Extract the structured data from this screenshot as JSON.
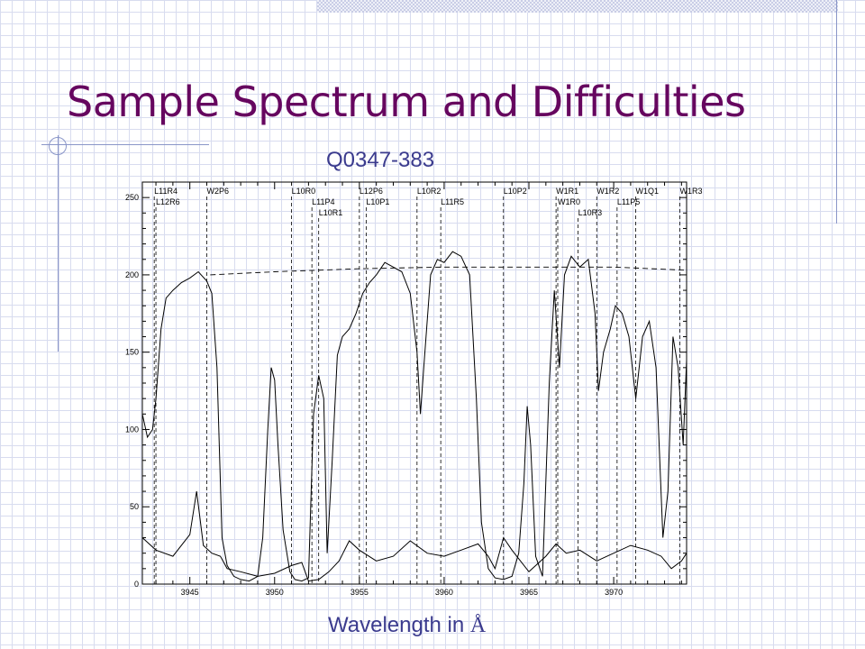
{
  "slide": {
    "title": "Sample Spectrum and Difficulties",
    "accent_color": "#66065f",
    "subtitle_color": "#3b3b8e"
  },
  "chart_data": {
    "type": "line",
    "title": "Q0347-383",
    "xlabel_text": "Wavelength in ",
    "xlabel_unit": "Å",
    "ylabel": "",
    "xlim": [
      3942.2,
      3974.3
    ],
    "ylim": [
      0,
      260
    ],
    "x_ticks": [
      3945,
      3950,
      3955,
      3960,
      3965,
      3970
    ],
    "y_ticks": [
      0,
      50,
      100,
      150,
      200,
      250
    ],
    "grid": false,
    "series": [
      {
        "style": "solid",
        "points": [
          [
            3942.2,
            110
          ],
          [
            3942.5,
            95
          ],
          [
            3942.8,
            100
          ],
          [
            3943.0,
            120
          ],
          [
            3943.3,
            165
          ],
          [
            3943.6,
            185
          ],
          [
            3944.0,
            190
          ],
          [
            3944.5,
            195
          ],
          [
            3945.0,
            198
          ],
          [
            3945.5,
            202
          ],
          [
            3946.0,
            196
          ],
          [
            3946.3,
            188
          ],
          [
            3946.6,
            140
          ],
          [
            3946.9,
            30
          ],
          [
            3947.2,
            12
          ],
          [
            3947.6,
            5
          ],
          [
            3948.0,
            3
          ],
          [
            3948.5,
            2
          ],
          [
            3949.0,
            5
          ],
          [
            3949.3,
            30
          ],
          [
            3949.6,
            100
          ],
          [
            3949.8,
            140
          ],
          [
            3950.0,
            132
          ],
          [
            3950.2,
            90
          ],
          [
            3950.5,
            35
          ],
          [
            3950.9,
            8
          ],
          [
            3951.2,
            3
          ],
          [
            3951.6,
            2
          ],
          [
            3952.0,
            4
          ],
          [
            3952.3,
            110
          ],
          [
            3952.6,
            135
          ],
          [
            3952.9,
            120
          ],
          [
            3953.1,
            20
          ],
          [
            3953.4,
            80
          ],
          [
            3953.7,
            148
          ],
          [
            3954.0,
            160
          ],
          [
            3954.4,
            165
          ],
          [
            3954.8,
            175
          ],
          [
            3955.2,
            188
          ],
          [
            3955.6,
            195
          ],
          [
            3956.0,
            200
          ],
          [
            3956.5,
            208
          ],
          [
            3957.0,
            205
          ],
          [
            3957.5,
            202
          ],
          [
            3958.0,
            188
          ],
          [
            3958.4,
            150
          ],
          [
            3958.6,
            110
          ],
          [
            3958.8,
            140
          ],
          [
            3959.2,
            200
          ],
          [
            3959.6,
            210
          ],
          [
            3960.0,
            208
          ],
          [
            3960.5,
            215
          ],
          [
            3961.0,
            212
          ],
          [
            3961.5,
            200
          ],
          [
            3961.9,
            120
          ],
          [
            3962.2,
            40
          ],
          [
            3962.6,
            10
          ],
          [
            3963.0,
            4
          ],
          [
            3963.5,
            3
          ],
          [
            3964.0,
            5
          ],
          [
            3964.4,
            20
          ],
          [
            3964.7,
            65
          ],
          [
            3964.9,
            115
          ],
          [
            3965.1,
            90
          ],
          [
            3965.4,
            18
          ],
          [
            3965.8,
            5
          ],
          [
            3966.2,
            130
          ],
          [
            3966.5,
            190
          ],
          [
            3966.8,
            140
          ],
          [
            3967.1,
            200
          ],
          [
            3967.5,
            212
          ],
          [
            3968.0,
            205
          ],
          [
            3968.5,
            210
          ],
          [
            3968.9,
            175
          ],
          [
            3969.1,
            125
          ],
          [
            3969.4,
            150
          ],
          [
            3969.8,
            165
          ],
          [
            3970.1,
            180
          ],
          [
            3970.5,
            175
          ],
          [
            3970.9,
            160
          ],
          [
            3971.3,
            120
          ],
          [
            3971.7,
            160
          ],
          [
            3972.1,
            170
          ],
          [
            3972.5,
            140
          ],
          [
            3972.9,
            30
          ],
          [
            3973.2,
            60
          ],
          [
            3973.5,
            160
          ],
          [
            3973.8,
            140
          ],
          [
            3974.1,
            90
          ],
          [
            3974.3,
            145
          ]
        ]
      },
      {
        "style": "solid",
        "points": [
          [
            3942.2,
            30
          ],
          [
            3943.0,
            22
          ],
          [
            3944.0,
            18
          ],
          [
            3945.0,
            32
          ],
          [
            3945.4,
            60
          ],
          [
            3945.8,
            25
          ],
          [
            3946.3,
            20
          ],
          [
            3946.8,
            18
          ],
          [
            3947.2,
            10
          ],
          [
            3948.0,
            8
          ],
          [
            3949.0,
            5
          ],
          [
            3950.0,
            7
          ],
          [
            3951.0,
            12
          ],
          [
            3951.6,
            14
          ],
          [
            3952.0,
            2
          ],
          [
            3952.6,
            3
          ],
          [
            3953.2,
            8
          ],
          [
            3953.8,
            15
          ],
          [
            3954.4,
            28
          ],
          [
            3955.0,
            22
          ],
          [
            3956.0,
            15
          ],
          [
            3957.0,
            18
          ],
          [
            3958.0,
            28
          ],
          [
            3959.0,
            20
          ],
          [
            3960.0,
            18
          ],
          [
            3961.0,
            22
          ],
          [
            3962.0,
            26
          ],
          [
            3962.6,
            18
          ],
          [
            3963.0,
            10
          ],
          [
            3963.5,
            30
          ],
          [
            3964.0,
            22
          ],
          [
            3965.0,
            8
          ],
          [
            3966.0,
            18
          ],
          [
            3966.6,
            26
          ],
          [
            3967.2,
            20
          ],
          [
            3968.0,
            22
          ],
          [
            3969.0,
            15
          ],
          [
            3970.0,
            20
          ],
          [
            3971.0,
            25
          ],
          [
            3972.0,
            22
          ],
          [
            3972.8,
            18
          ],
          [
            3973.4,
            10
          ],
          [
            3974.0,
            15
          ],
          [
            3974.3,
            20
          ]
        ]
      },
      {
        "style": "dashed",
        "points": [
          [
            3946.2,
            200
          ],
          [
            3950.0,
            202
          ],
          [
            3955.0,
            204
          ],
          [
            3960.0,
            205
          ],
          [
            3965.0,
            205
          ],
          [
            3970.0,
            205
          ],
          [
            3974.3,
            203
          ]
        ]
      }
    ],
    "line_labels": [
      {
        "label": "L11R4",
        "x": 3942.9
      },
      {
        "label": "L12R6",
        "x": 3943.0
      },
      {
        "label": "W2P6",
        "x": 3946.0
      },
      {
        "label": "L10R0",
        "x": 3951.0
      },
      {
        "label": "L11P4",
        "x": 3952.2
      },
      {
        "label": "L10R1",
        "x": 3952.6
      },
      {
        "label": "L12P6",
        "x": 3955.0
      },
      {
        "label": "L10P1",
        "x": 3955.4
      },
      {
        "label": "L10R2",
        "x": 3958.4
      },
      {
        "label": "L11R5",
        "x": 3959.8
      },
      {
        "label": "L10P2",
        "x": 3963.5
      },
      {
        "label": "W1R1",
        "x": 3966.6
      },
      {
        "label": "W1R0",
        "x": 3966.7
      },
      {
        "label": "L10R3",
        "x": 3967.9
      },
      {
        "label": "W1R2",
        "x": 3969.0
      },
      {
        "label": "L11P5",
        "x": 3970.2
      },
      {
        "label": "W1Q1",
        "x": 3971.3
      },
      {
        "label": "W1R3",
        "x": 3973.9
      }
    ]
  }
}
